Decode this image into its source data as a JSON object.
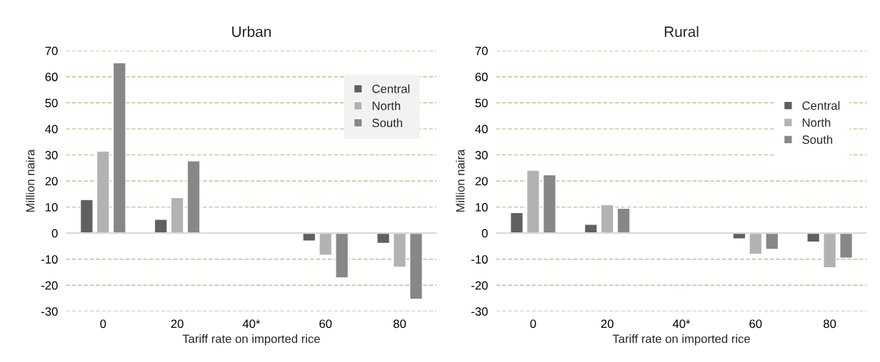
{
  "chart_data": [
    {
      "type": "bar",
      "title": "Urban",
      "xlabel": "Tariff rate on imported rice",
      "ylabel": "Million naira",
      "categories": [
        "0",
        "20",
        "40*",
        "60",
        "80"
      ],
      "series": [
        {
          "name": "Central",
          "color": "#606060",
          "values": [
            12.9,
            5.3,
            null,
            -3.0,
            -3.9
          ]
        },
        {
          "name": "North",
          "color": "#b2b2b2",
          "values": [
            31.5,
            13.6,
            null,
            -8.5,
            -13.1
          ]
        },
        {
          "name": "South",
          "color": "#878787",
          "values": [
            65.4,
            27.7,
            null,
            -17.2,
            -25.4
          ]
        }
      ],
      "ylim": [
        -30,
        70
      ],
      "yticks": [
        -30,
        -20,
        -10,
        0,
        10,
        20,
        30,
        40,
        50,
        60,
        70
      ],
      "grid": "y",
      "legend": "top right"
    },
    {
      "type": "bar",
      "title": "Rural",
      "xlabel": "Tariff rate on imported rice",
      "ylabel": "Million naira",
      "categories": [
        "0",
        "20",
        "40*",
        "60",
        "80"
      ],
      "series": [
        {
          "name": "Central",
          "color": "#606060",
          "values": [
            7.9,
            3.4,
            null,
            -2.2,
            -3.4
          ]
        },
        {
          "name": "North",
          "color": "#b2b2b2",
          "values": [
            24.1,
            10.9,
            null,
            -8.1,
            -13.3
          ]
        },
        {
          "name": "South",
          "color": "#878787",
          "values": [
            22.4,
            9.5,
            null,
            -6.2,
            -9.6
          ]
        }
      ],
      "ylim": [
        -30,
        70
      ],
      "yticks": [
        -30,
        -20,
        -10,
        0,
        10,
        20,
        30,
        40,
        50,
        60,
        70
      ],
      "grid": "y",
      "legend": "right"
    }
  ]
}
